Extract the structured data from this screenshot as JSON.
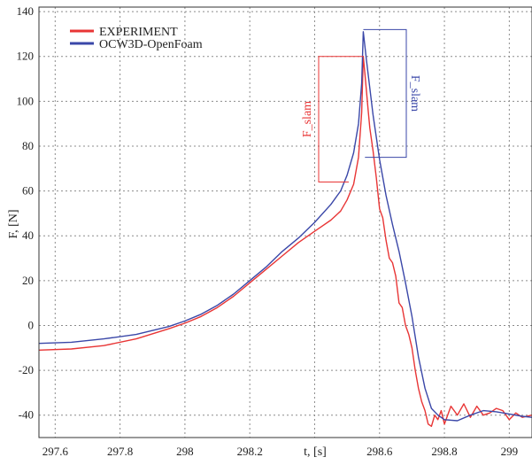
{
  "chart_data": {
    "type": "line",
    "title": "",
    "xlabel": "t, [s]",
    "ylabel": "F, [N]",
    "xlim": [
      297.55,
      299.07
    ],
    "ylim": [
      -50,
      142
    ],
    "grid": true,
    "legend_position": "top-left",
    "x_ticks": [
      297.6,
      297.8,
      298,
      298.2,
      298.4,
      298.6,
      298.8,
      299
    ],
    "x_tick_labels": [
      "297.6",
      "297.8",
      "298",
      "298.2",
      "",
      "298.6",
      "298.8",
      "299"
    ],
    "y_ticks": [
      -40,
      -20,
      0,
      20,
      40,
      60,
      80,
      100,
      120,
      140
    ],
    "y_tick_labels": [
      "-40",
      "-20",
      "0",
      "20",
      "40",
      "60",
      "80",
      "100",
      "120",
      "140"
    ],
    "series": [
      {
        "name": "EXPERIMENT",
        "color": "#e83535",
        "x": [
          297.55,
          297.65,
          297.75,
          297.85,
          297.95,
          298.0,
          298.05,
          298.1,
          298.15,
          298.2,
          298.25,
          298.3,
          298.35,
          298.4,
          298.45,
          298.48,
          298.5,
          298.52,
          298.535,
          298.545,
          298.55,
          298.555,
          298.56,
          298.565,
          298.57,
          298.58,
          298.59,
          298.6,
          298.61,
          298.62,
          298.63,
          298.64,
          298.65,
          298.66,
          298.67,
          298.68,
          298.69,
          298.7,
          298.71,
          298.72,
          298.73,
          298.74,
          298.75,
          298.76,
          298.77,
          298.78,
          298.79,
          298.8,
          298.82,
          298.84,
          298.86,
          298.88,
          298.9,
          298.92,
          298.94,
          298.96,
          298.98,
          299.0,
          299.02,
          299.04,
          299.07
        ],
        "y": [
          -11,
          -10.5,
          -9,
          -6,
          -1.5,
          1,
          4,
          8,
          13,
          19,
          25,
          31,
          37,
          42,
          47,
          51,
          56,
          63,
          75,
          95,
          120,
          112,
          104,
          96,
          88,
          78,
          66,
          52,
          48,
          38,
          30,
          28,
          22,
          10,
          8,
          0,
          -4,
          -10,
          -20,
          -28,
          -34,
          -38,
          -44,
          -45,
          -40,
          -42,
          -38,
          -44,
          -36,
          -40,
          -35,
          -41,
          -36,
          -40,
          -39,
          -37,
          -38,
          -42,
          -39,
          -41,
          -40
        ]
      },
      {
        "name": "OCW3D-OpenFoam",
        "color": "#3a47a8",
        "x": [
          297.55,
          297.65,
          297.75,
          297.85,
          297.95,
          298.0,
          298.05,
          298.1,
          298.15,
          298.2,
          298.25,
          298.3,
          298.35,
          298.4,
          298.45,
          298.48,
          298.5,
          298.52,
          298.535,
          298.545,
          298.55,
          298.56,
          298.58,
          298.6,
          298.62,
          298.64,
          298.66,
          298.68,
          298.7,
          298.72,
          298.74,
          298.76,
          298.78,
          298.8,
          298.84,
          298.88,
          298.92,
          298.96,
          299.0,
          299.04,
          299.07
        ],
        "y": [
          -8,
          -7.5,
          -6,
          -4,
          -0.5,
          2,
          5,
          9,
          14,
          20,
          26,
          33,
          39,
          46,
          54,
          60,
          67,
          77,
          90,
          108,
          131,
          118,
          94,
          74,
          58,
          45,
          33,
          19,
          4,
          -14,
          -28,
          -37,
          -40,
          -42,
          -42.5,
          -40,
          -38,
          -38.5,
          -39.5,
          -40.5,
          -41
        ]
      }
    ],
    "annotations": [
      {
        "label": "F_slam",
        "color": "#e83535",
        "y_low": 64,
        "y_high": 120
      },
      {
        "label": "F_slam",
        "color": "#3a47a8",
        "y_low": 75,
        "y_high": 132
      }
    ]
  }
}
